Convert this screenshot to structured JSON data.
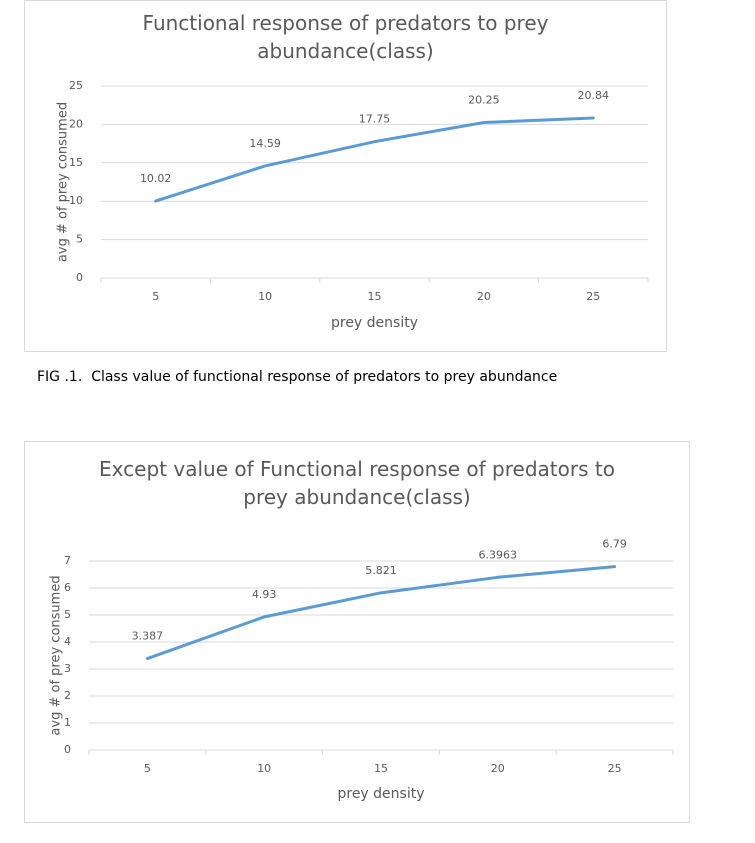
{
  "chart_data": [
    {
      "type": "line",
      "title": "Functional response of predators to prey abundance(class)",
      "x_label": "prey density",
      "y_label": "avg # of prey consumed",
      "categories": [
        "5",
        "10",
        "15",
        "20",
        "25"
      ],
      "series": [
        {
          "color": "#5b9bd5",
          "values": [
            10.02,
            14.59,
            17.75,
            20.25,
            20.84
          ]
        }
      ],
      "ylim": [
        0,
        25
      ],
      "yticks": [
        0,
        5,
        10,
        15,
        20,
        25
      ],
      "grid": true,
      "data_labels": true
    },
    {
      "type": "line",
      "title": "Except value of Functional response of predators to prey abundance(class)",
      "x_label": "prey density",
      "y_label": "avg # of prey consumed",
      "categories": [
        "5",
        "10",
        "15",
        "20",
        "25"
      ],
      "series": [
        {
          "color": "#5b9bd5",
          "values": [
            3.387,
            4.93,
            5.821,
            6.3963,
            6.79
          ]
        }
      ],
      "ylim": [
        0,
        7
      ],
      "yticks": [
        0,
        1,
        2,
        3,
        4,
        5,
        6,
        7
      ],
      "grid": true,
      "data_labels": true
    }
  ],
  "caption": "FIG .1.  Class value of functional response of predators to prey abundance"
}
